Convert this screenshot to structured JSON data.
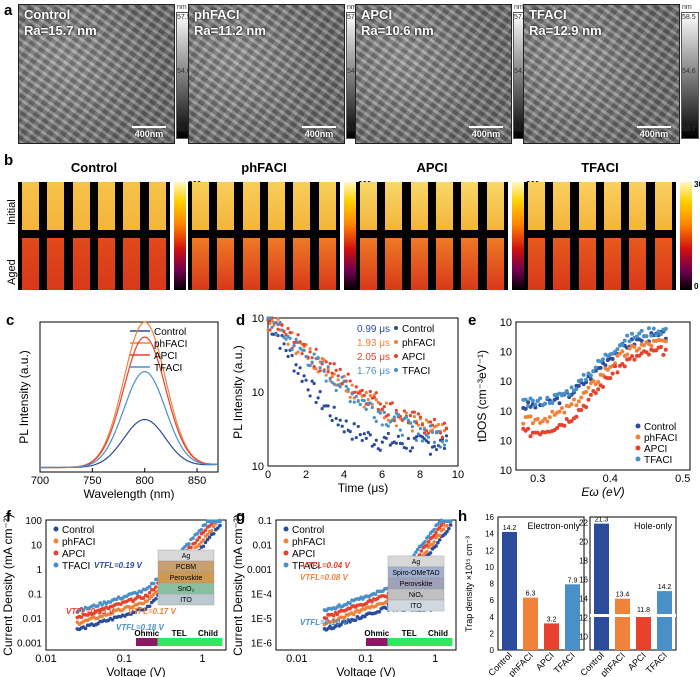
{
  "panels": {
    "a": "a",
    "b": "b",
    "c": "c",
    "d": "d",
    "e": "e",
    "f": "f",
    "g": "g",
    "h": "h"
  },
  "afm": [
    {
      "name": "Control",
      "ra": "Ra=15.7 nm",
      "top": "57.5",
      "mid": "54.6",
      "bot": "51.6"
    },
    {
      "name": "phFACI",
      "ra": "Ra=11.2 nm",
      "top": "57.8",
      "mid": "54.5",
      "bot": "51.2"
    },
    {
      "name": "APCI",
      "ra": "Ra=10.6 nm",
      "top": "57.3",
      "mid": "54.4",
      "bot": "51.4"
    },
    {
      "name": "TFACI",
      "ra": "Ra=12.9 nm",
      "top": "58.5",
      "mid": "54.6",
      "bot": "50.7"
    }
  ],
  "afm_unit": "nm",
  "scale_bar": "400nm",
  "qe": {
    "titles": [
      "Control",
      "phFACI",
      "APCI",
      "TFACI"
    ],
    "row_initial": "Initial",
    "row_aged": "Aged",
    "bar_top": "300",
    "bar_bottom": "0",
    "bar_label": "QE(%)"
  },
  "colors": {
    "control": "#2b4c9a",
    "phfaci": "#f0823a",
    "apci": "#e8412c",
    "tfaci": "#4a90c8",
    "tel": "#2ee860",
    "ohmic": "#8b1a66",
    "child": "#2ee860"
  },
  "chart_data": [
    {
      "panel": "c",
      "type": "line",
      "xlabel": "Wavelength (nm)",
      "ylabel": "PL Intensity (a.u.)",
      "xlim": [
        700,
        870
      ],
      "xticks": [
        "700",
        "750",
        "800",
        "850"
      ],
      "series": [
        {
          "name": "Control",
          "peak_x": 800,
          "peak": 0.32
        },
        {
          "name": "phFACI",
          "peak_x": 800,
          "peak": 0.97
        },
        {
          "name": "APCI",
          "peak_x": 800,
          "peak": 0.87
        },
        {
          "name": "TFACI",
          "peak_x": 800,
          "peak": 0.64
        }
      ]
    },
    {
      "panel": "d",
      "type": "scatter",
      "xlabel": "Time (μs)",
      "ylabel": "PL Intensity (a.u.)",
      "xlim": [
        0,
        10
      ],
      "ylim": [
        0.01,
        1
      ],
      "xticks": [
        "0",
        "2",
        "4",
        "6",
        "8",
        "10"
      ],
      "yticks": [
        "10^0",
        "10^-1",
        "10^-2"
      ],
      "series": [
        {
          "name": "Control",
          "lifetime": "0.99 μs",
          "tau": 0.99
        },
        {
          "name": "phFACI",
          "lifetime": "1.93 μs",
          "tau": 1.93
        },
        {
          "name": "APCI",
          "lifetime": "2.05 μs",
          "tau": 2.05
        },
        {
          "name": "TFACI",
          "lifetime": "1.76 μs",
          "tau": 1.76
        }
      ]
    },
    {
      "panel": "e",
      "type": "scatter",
      "xlabel": "Eω (eV)",
      "ylabel": "tDOS (cm⁻³eV⁻¹)",
      "xlim": [
        0.27,
        0.51
      ],
      "ylim": [
        1000000000000.0,
        1e+17
      ],
      "xticks": [
        "0.3",
        "0.4",
        "0.5"
      ],
      "yticks": [
        "10^17",
        "10^16",
        "10^15",
        "10^14",
        "10^13",
        "10^12"
      ],
      "series": [
        {
          "name": "Control",
          "start": 14.1,
          "end": 16.6
        },
        {
          "name": "phFACI",
          "start": 13.6,
          "end": 16.4
        },
        {
          "name": "APCI",
          "start": 13.2,
          "end": 16.1
        },
        {
          "name": "TFACI",
          "start": 14.2,
          "end": 16.8
        }
      ]
    },
    {
      "panel": "f",
      "type": "scatter",
      "xlabel": "Voltage (V)",
      "ylabel": "Current Density (mA cm⁻²)",
      "xlim": [
        0.01,
        2
      ],
      "ylim": [
        0.001,
        200
      ],
      "xticks": [
        "0.01",
        "0.1",
        "1"
      ],
      "yticks": [
        "100",
        "10",
        "1",
        "0.1",
        "0.01",
        "0.001"
      ],
      "annotations": [
        "VTFL=0.19 V",
        "VTFL=0.15 V",
        "VTFL=0.17 V",
        "VTFL=0.18 V"
      ],
      "regions": [
        "Ohmic",
        "TEL",
        "Child"
      ],
      "stack": [
        "Ag",
        "PCBM",
        "Perovskite",
        "SnO₂",
        "ITO"
      ],
      "series": [
        {
          "name": "Control"
        },
        {
          "name": "phFACI"
        },
        {
          "name": "APCI"
        },
        {
          "name": "TFACI"
        }
      ]
    },
    {
      "panel": "g",
      "type": "scatter",
      "xlabel": "Voltage (V)",
      "ylabel": "Current Density (mA cm⁻²)",
      "xlim": [
        0.005,
        2
      ],
      "ylim": [
        1e-06,
        0.2
      ],
      "xticks": [
        "0.01",
        "0.1",
        "1"
      ],
      "yticks": [
        "0.1",
        "0.01",
        "0.001",
        "1E-4",
        "1E-5",
        "1E-6"
      ],
      "annotations": [
        "VTFL=0.04 V",
        "VTFL=0.08 V",
        "VTFL=0.10 V",
        "VTFL=0.18 V"
      ],
      "regions": [
        "Ohmic",
        "TEL",
        "Child"
      ],
      "stack": [
        "Ag",
        "Spiro-OMeTAD",
        "Perovskite",
        "NiOₓ",
        "ITO"
      ],
      "series": [
        {
          "name": "Control"
        },
        {
          "name": "phFACI"
        },
        {
          "name": "APCI"
        },
        {
          "name": "TFACI"
        }
      ]
    },
    {
      "panel": "h",
      "type": "bar",
      "ylabel": "Trap density ×10¹⁵ cm⁻³",
      "categories": [
        "Control",
        "phFACI",
        "APCI",
        "TFACI"
      ],
      "groups": [
        {
          "title": "Electron-only",
          "values": [
            14.2,
            6.3,
            3.2,
            7.9
          ],
          "labels": [
            "14.2",
            "6.3",
            "3.2",
            "7.9"
          ],
          "ylim": [
            0,
            16
          ]
        },
        {
          "title": "Hole-only",
          "values": [
            21.3,
            13.4,
            11.8,
            14.2
          ],
          "labels": [
            "21.3",
            "13.4",
            "11.8",
            "14.2"
          ],
          "ylim": [
            0,
            22
          ]
        }
      ],
      "yticks_left": [
        "0",
        "2",
        "4",
        "6",
        "8",
        "10",
        "12",
        "14",
        "16"
      ],
      "yticks_right": [
        "10",
        "12",
        "14",
        "16",
        "18",
        "20",
        "22"
      ]
    }
  ]
}
